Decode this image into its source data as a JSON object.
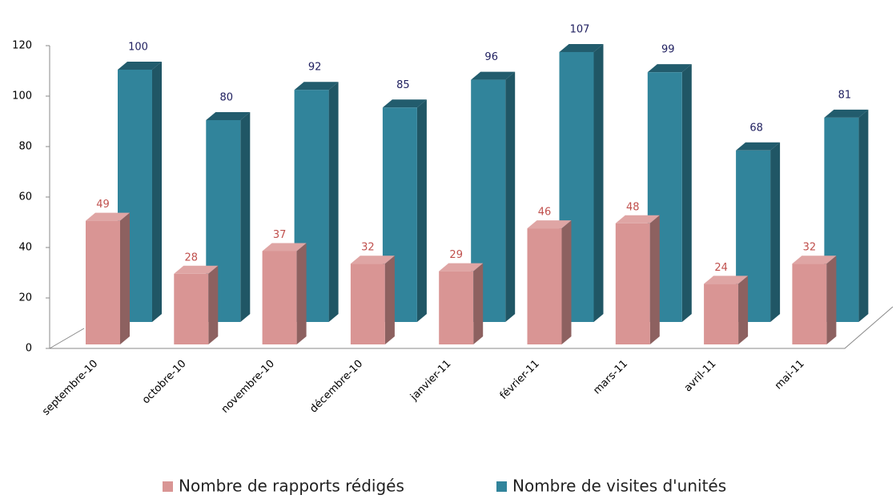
{
  "chart_data": {
    "type": "bar3d",
    "categories": [
      "septembre-10",
      "octobre-10",
      "novembre-10",
      "décembre-10",
      "janvier-11",
      "février-11",
      "mars-11",
      "avril-11",
      "mai-11"
    ],
    "series": [
      {
        "name": "Nombre de rapports rédigés",
        "color": "#d99594",
        "values": [
          49,
          28,
          37,
          32,
          29,
          46,
          48,
          24,
          32
        ]
      },
      {
        "name": "Nombre de visites d'unités",
        "color": "#31849b",
        "values": [
          100,
          80,
          92,
          85,
          96,
          107,
          99,
          68,
          81
        ]
      }
    ],
    "ylim": [
      0,
      120
    ],
    "yticks": [
      0,
      20,
      40,
      60,
      80,
      100,
      120
    ]
  }
}
